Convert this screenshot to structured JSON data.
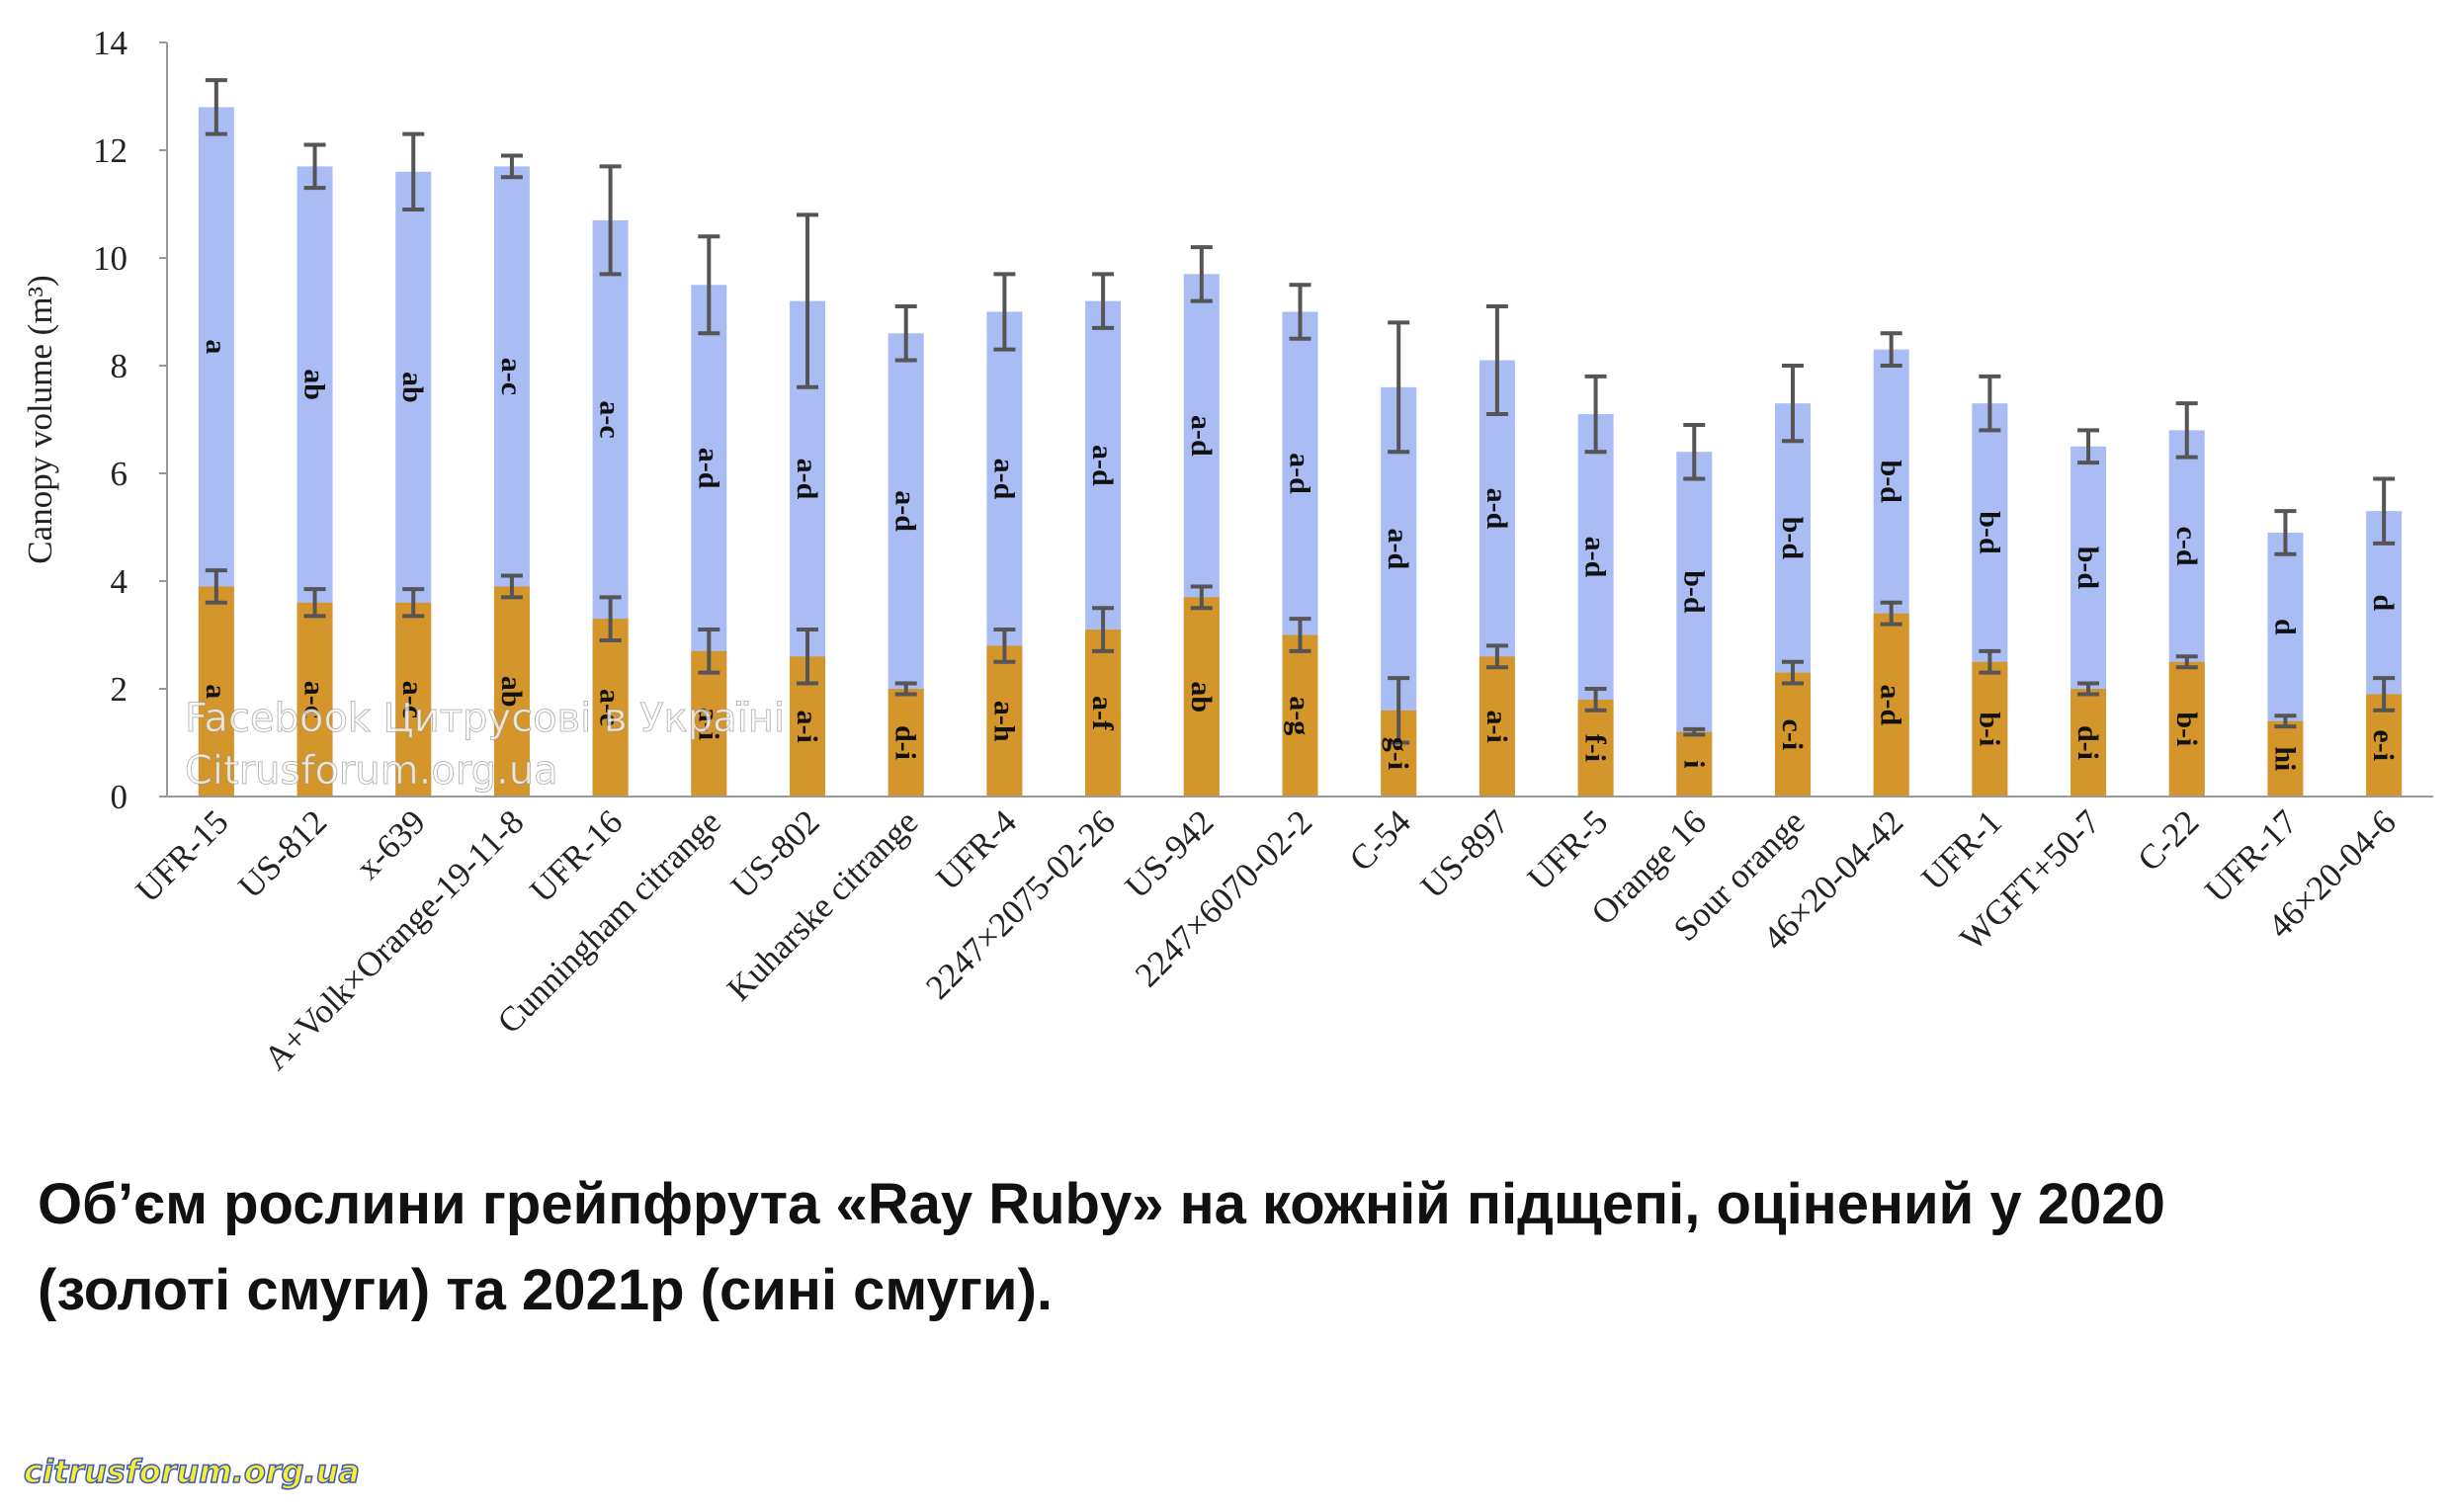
{
  "chart_data": {
    "type": "bar",
    "y_label": "Canopy volume (m³)",
    "categories": [
      "UFR-15",
      "US-812",
      "x-639",
      "A+Volk×Orange-19-11-8",
      "UFR-16",
      "Cunningham citrange",
      "US-802",
      "Kuharske citrange",
      "UFR-4",
      "2247×2075-02-26",
      "US-942",
      "2247×6070-02-2",
      "C-54",
      "US-897",
      "UFR-5",
      "Orange 16",
      "Sour orange",
      "46×20-04-42",
      "UFR-1",
      "WGFT+50-7",
      "C-22",
      "UFR-17",
      "46×20-04-6"
    ],
    "series": [
      {
        "color": "#a9bdf4",
        "values": [
          12.8,
          11.7,
          11.6,
          11.7,
          10.7,
          9.5,
          9.2,
          8.6,
          9.0,
          9.2,
          9.7,
          9.0,
          7.6,
          8.1,
          7.1,
          6.4,
          7.3,
          8.3,
          7.3,
          6.5,
          6.8,
          4.9,
          5.3
        ],
        "errors": [
          0.5,
          0.4,
          0.7,
          0.2,
          1.0,
          0.9,
          1.6,
          0.5,
          0.7,
          0.5,
          0.5,
          0.5,
          1.2,
          1.0,
          0.7,
          0.5,
          0.7,
          0.3,
          0.5,
          0.3,
          0.5,
          0.4,
          0.6
        ],
        "letters": [
          "a",
          "ab",
          "ab",
          "a-c",
          "a-c",
          "a-d",
          "a-d",
          "a-d",
          "a-d",
          "a-d",
          "a-d",
          "a-d",
          "a-d",
          "a-d",
          "a-d",
          "b-d",
          "b-d",
          "b-d",
          "b-d",
          "b-d",
          "c-d",
          "d",
          "d"
        ]
      },
      {
        "color": "#d4962a",
        "values": [
          3.9,
          3.6,
          3.6,
          3.9,
          3.3,
          2.7,
          2.6,
          2.0,
          2.8,
          3.1,
          3.7,
          3.0,
          1.6,
          2.6,
          1.8,
          1.2,
          2.3,
          3.4,
          2.5,
          2.0,
          2.5,
          1.4,
          1.9
        ],
        "errors": [
          0.3,
          0.25,
          0.25,
          0.2,
          0.4,
          0.4,
          0.5,
          0.1,
          0.3,
          0.4,
          0.2,
          0.3,
          0.6,
          0.2,
          0.2,
          0.05,
          0.2,
          0.2,
          0.2,
          0.1,
          0.1,
          0.1,
          0.3
        ],
        "letters": [
          "a",
          "a-c",
          "a-c",
          "ab",
          "a-e",
          "a-i",
          "a-i",
          "d-i",
          "a-h",
          "a-f",
          "ab",
          "a-g",
          "g-i",
          "a-i",
          "f-i",
          "i",
          "c-i",
          "a-d",
          "b-i",
          "d-i",
          "b-i",
          "hi",
          "e-i"
        ]
      }
    ],
    "ylim": [
      0,
      14
    ],
    "yticks": [
      0,
      2,
      4,
      6,
      8,
      10,
      12,
      14
    ]
  },
  "caption": [
    "Об’єм рослини грейпфрута «Ray Ruby» на кожній підщепі, оцінений у 2020",
    "(золоті смуги) та 2021р (сині смуги)."
  ],
  "watermarks": [
    "Facebook Цитрусові в Україні",
    "Citrusforum.org.ua",
    "citrusforum.org.ua"
  ]
}
